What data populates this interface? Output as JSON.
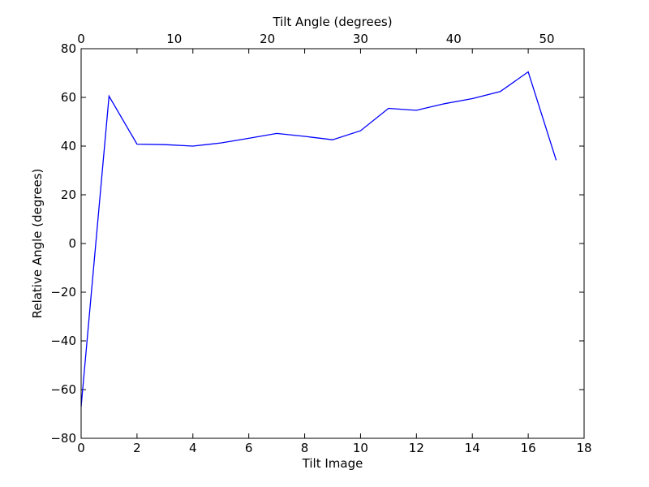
{
  "chart_data": {
    "type": "line",
    "title": "",
    "xlabel": "Tilt Image",
    "ylabel": "Relative Angle (degrees)",
    "x2label": "Tilt Angle (degrees)",
    "xlim": [
      0,
      18
    ],
    "ylim": [
      -80,
      80
    ],
    "x2lim": [
      0,
      54
    ],
    "xticks": [
      "0",
      "2",
      "4",
      "6",
      "8",
      "10",
      "12",
      "14",
      "16",
      "18"
    ],
    "yticks": [
      "80",
      "60",
      "40",
      "20",
      "0",
      "−20",
      "−40",
      "−60",
      "−80"
    ],
    "x2ticks": [
      "0",
      "10",
      "20",
      "30",
      "40",
      "50"
    ],
    "grid": false,
    "series": [
      {
        "color": "#0000ff",
        "x": [
          0,
          1,
          2,
          3,
          4,
          5,
          6,
          7,
          8,
          9,
          10,
          11,
          12,
          13,
          14,
          15,
          16,
          17
        ],
        "y": [
          -67,
          60.5,
          40.8,
          40.6,
          40,
          41.3,
          43.2,
          45.2,
          44,
          42.6,
          46.3,
          55.5,
          54.7,
          57.4,
          59.5,
          62.4,
          70.5,
          34.2
        ]
      }
    ]
  }
}
